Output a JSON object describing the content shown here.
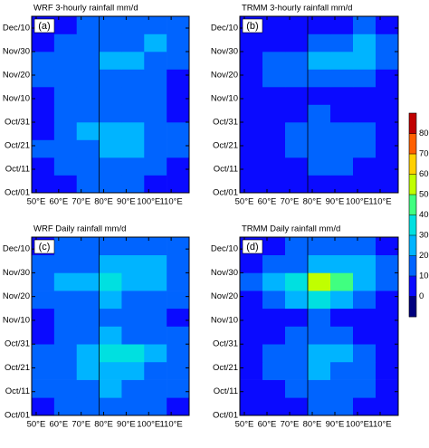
{
  "chart_data": [
    {
      "type": "heatmap",
      "title": "WRF 3-hourly rainfall mm/d",
      "tag": "(a)",
      "xlim": [
        48,
        118
      ],
      "ylim": [
        0,
        75
      ],
      "vline": 78,
      "xticks": [
        {
          "value": 50,
          "label": "50°E"
        },
        {
          "value": 60,
          "label": "60°E"
        },
        {
          "value": 70,
          "label": "70°E"
        },
        {
          "value": 80,
          "label": "80°E"
        },
        {
          "value": 90,
          "label": "90°E"
        },
        {
          "value": 100,
          "label": "100°E"
        },
        {
          "value": 110,
          "label": "110°E"
        }
      ],
      "yticks": [
        {
          "value": 0,
          "label": "Oct/01"
        },
        {
          "value": 10,
          "label": "Oct/11"
        },
        {
          "value": 20,
          "label": "Oct/21"
        },
        {
          "value": 30,
          "label": "Oct/31"
        },
        {
          "value": 40,
          "label": "Nov/10"
        },
        {
          "value": 50,
          "label": "Nov/20"
        },
        {
          "value": 60,
          "label": "Nov/30"
        },
        {
          "value": 70,
          "label": "Dec/10"
        }
      ],
      "z": [
        [
          8,
          8,
          10,
          10,
          12,
          8,
          8
        ],
        [
          8,
          10,
          12,
          14,
          14,
          10,
          8
        ],
        [
          10,
          12,
          18,
          22,
          20,
          14,
          10
        ],
        [
          8,
          12,
          20,
          28,
          24,
          16,
          10
        ],
        [
          8,
          10,
          14,
          18,
          16,
          12,
          8
        ],
        [
          8,
          10,
          12,
          14,
          12,
          10,
          8
        ],
        [
          10,
          14,
          16,
          18,
          14,
          10,
          8
        ],
        [
          12,
          16,
          18,
          24,
          22,
          14,
          10
        ],
        [
          8,
          10,
          12,
          16,
          18,
          20,
          14
        ],
        [
          8,
          8,
          10,
          12,
          14,
          16,
          12
        ]
      ]
    },
    {
      "type": "heatmap",
      "title": "TRMM 3-hourly rainfall mm/d",
      "tag": "(b)",
      "xlim": [
        48,
        118
      ],
      "ylim": [
        0,
        75
      ],
      "vline": 78,
      "xticks": [
        {
          "value": 50,
          "label": "50°E"
        },
        {
          "value": 60,
          "label": "60°E"
        },
        {
          "value": 70,
          "label": "70°E"
        },
        {
          "value": 80,
          "label": "80°E"
        },
        {
          "value": 90,
          "label": "90°E"
        },
        {
          "value": 100,
          "label": "100°E"
        },
        {
          "value": 110,
          "label": "110°E"
        }
      ],
      "yticks": [
        {
          "value": 0,
          "label": "Oct/01"
        },
        {
          "value": 10,
          "label": "Oct/11"
        },
        {
          "value": 20,
          "label": "Oct/21"
        },
        {
          "value": 30,
          "label": "Oct/31"
        },
        {
          "value": 40,
          "label": "Nov/10"
        },
        {
          "value": 50,
          "label": "Nov/20"
        },
        {
          "value": 60,
          "label": "Nov/30"
        },
        {
          "value": 70,
          "label": "Dec/10"
        }
      ],
      "z": [
        [
          5,
          5,
          5,
          8,
          8,
          5,
          5
        ],
        [
          5,
          5,
          8,
          10,
          12,
          8,
          5
        ],
        [
          5,
          8,
          12,
          16,
          14,
          10,
          5
        ],
        [
          5,
          8,
          14,
          18,
          16,
          12,
          8
        ],
        [
          5,
          5,
          8,
          10,
          8,
          5,
          5
        ],
        [
          5,
          5,
          5,
          8,
          8,
          5,
          5
        ],
        [
          8,
          12,
          16,
          18,
          14,
          10,
          5
        ],
        [
          5,
          10,
          14,
          22,
          26,
          20,
          12
        ],
        [
          5,
          5,
          8,
          12,
          18,
          22,
          16
        ],
        [
          5,
          5,
          5,
          8,
          8,
          10,
          8
        ]
      ]
    },
    {
      "type": "heatmap",
      "title": "WRF Daily rainfall mm/d",
      "tag": "(c)",
      "xlim": [
        48,
        118
      ],
      "ylim": [
        0,
        75
      ],
      "vline": 78,
      "xticks": [
        {
          "value": 50,
          "label": "50°E"
        },
        {
          "value": 60,
          "label": "60°E"
        },
        {
          "value": 70,
          "label": "70°E"
        },
        {
          "value": 80,
          "label": "80°E"
        },
        {
          "value": 90,
          "label": "90°E"
        },
        {
          "value": 100,
          "label": "100°E"
        },
        {
          "value": 110,
          "label": "110°E"
        }
      ],
      "yticks": [
        {
          "value": 0,
          "label": "Oct/01"
        },
        {
          "value": 10,
          "label": "Oct/11"
        },
        {
          "value": 20,
          "label": "Oct/21"
        },
        {
          "value": 30,
          "label": "Oct/31"
        },
        {
          "value": 40,
          "label": "Nov/10"
        },
        {
          "value": 50,
          "label": "Nov/20"
        },
        {
          "value": 60,
          "label": "Nov/30"
        },
        {
          "value": 70,
          "label": "Dec/10"
        }
      ],
      "z": [
        [
          8,
          10,
          12,
          14,
          14,
          10,
          8
        ],
        [
          10,
          14,
          18,
          20,
          18,
          14,
          10
        ],
        [
          12,
          16,
          24,
          28,
          26,
          18,
          12
        ],
        [
          10,
          16,
          26,
          34,
          30,
          20,
          12
        ],
        [
          8,
          12,
          16,
          22,
          18,
          14,
          10
        ],
        [
          8,
          10,
          12,
          14,
          14,
          12,
          8
        ],
        [
          10,
          14,
          18,
          20,
          18,
          14,
          10
        ],
        [
          16,
          22,
          26,
          32,
          28,
          22,
          14
        ],
        [
          10,
          14,
          18,
          22,
          24,
          26,
          18
        ],
        [
          8,
          10,
          12,
          14,
          16,
          18,
          14
        ]
      ]
    },
    {
      "type": "heatmap",
      "title": "TRMM Daily rainfall mm/d",
      "tag": "(d)",
      "xlim": [
        48,
        118
      ],
      "ylim": [
        0,
        75
      ],
      "vline": 78,
      "xticks": [
        {
          "value": 50,
          "label": "50°E"
        },
        {
          "value": 60,
          "label": "60°E"
        },
        {
          "value": 70,
          "label": "70°E"
        },
        {
          "value": 80,
          "label": "80°E"
        },
        {
          "value": 90,
          "label": "90°E"
        },
        {
          "value": 100,
          "label": "100°E"
        },
        {
          "value": 110,
          "label": "110°E"
        }
      ],
      "yticks": [
        {
          "value": 0,
          "label": "Oct/01"
        },
        {
          "value": 10,
          "label": "Oct/11"
        },
        {
          "value": 20,
          "label": "Oct/21"
        },
        {
          "value": 30,
          "label": "Oct/31"
        },
        {
          "value": 40,
          "label": "Nov/10"
        },
        {
          "value": 50,
          "label": "Nov/20"
        },
        {
          "value": 60,
          "label": "Nov/30"
        },
        {
          "value": 70,
          "label": "Dec/10"
        }
      ],
      "z": [
        [
          5,
          5,
          8,
          10,
          10,
          8,
          5
        ],
        [
          5,
          8,
          12,
          14,
          14,
          10,
          5
        ],
        [
          8,
          10,
          16,
          22,
          18,
          12,
          8
        ],
        [
          8,
          12,
          18,
          24,
          20,
          14,
          8
        ],
        [
          5,
          8,
          10,
          12,
          10,
          8,
          5
        ],
        [
          5,
          5,
          8,
          10,
          8,
          5,
          5
        ],
        [
          8,
          14,
          22,
          30,
          20,
          12,
          8
        ],
        [
          10,
          20,
          36,
          52,
          40,
          24,
          12
        ],
        [
          5,
          10,
          16,
          24,
          28,
          24,
          16
        ],
        [
          5,
          5,
          10,
          14,
          12,
          10,
          8
        ]
      ]
    },
    {
      "type": "colorbar",
      "levels": [
        0,
        10,
        20,
        30,
        40,
        50,
        60,
        70,
        80
      ],
      "colors": [
        "#00007f",
        "#0a0aff",
        "#0064ff",
        "#00b4ff",
        "#00e0e0",
        "#40ff80",
        "#c0ff00",
        "#ffd000",
        "#ff6000",
        "#c00000"
      ]
    }
  ]
}
